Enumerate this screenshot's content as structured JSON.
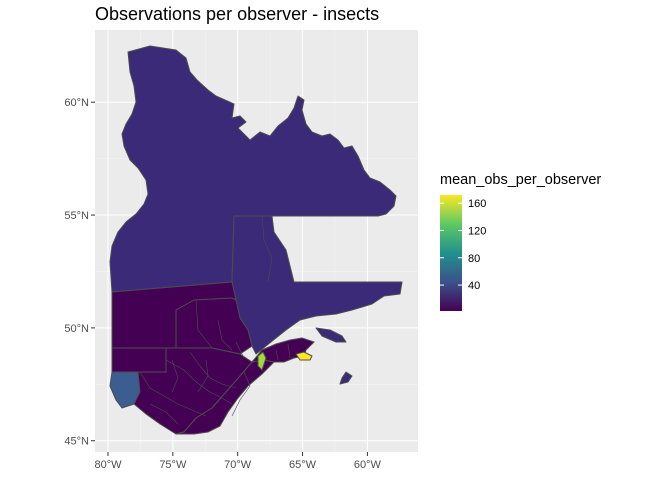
{
  "title": "Observations per observer - insects",
  "axes": {
    "x_ticks": [
      {
        "value": -80,
        "label": "80°W"
      },
      {
        "value": -75,
        "label": "75°W"
      },
      {
        "value": -70,
        "label": "70°W"
      },
      {
        "value": -65,
        "label": "65°W"
      },
      {
        "value": -60,
        "label": "60°W"
      }
    ],
    "y_ticks": [
      {
        "value": 45,
        "label": "45°N"
      },
      {
        "value": 50,
        "label": "50°N"
      },
      {
        "value": 55,
        "label": "55°N"
      },
      {
        "value": 60,
        "label": "60°N"
      }
    ],
    "x_range": [
      -81.0,
      -56.1
    ],
    "y_range": [
      44.5,
      63.2
    ]
  },
  "legend": {
    "title": "mean_obs_per_observer",
    "range": [
      2,
      172
    ],
    "ticks": [
      {
        "value": 40,
        "label": "40"
      },
      {
        "value": 80,
        "label": "80"
      },
      {
        "value": 120,
        "label": "120"
      },
      {
        "value": 160,
        "label": "160"
      }
    ],
    "colormap": [
      "#440154",
      "#3b528b",
      "#21918c",
      "#5ec962",
      "#fde725"
    ]
  },
  "colors": {
    "panel": "#ebebeb",
    "grid": "#ffffff",
    "border": "#4d4d4d",
    "nord_du_quebec": "#3b2a78",
    "low": "#440154"
  }
}
